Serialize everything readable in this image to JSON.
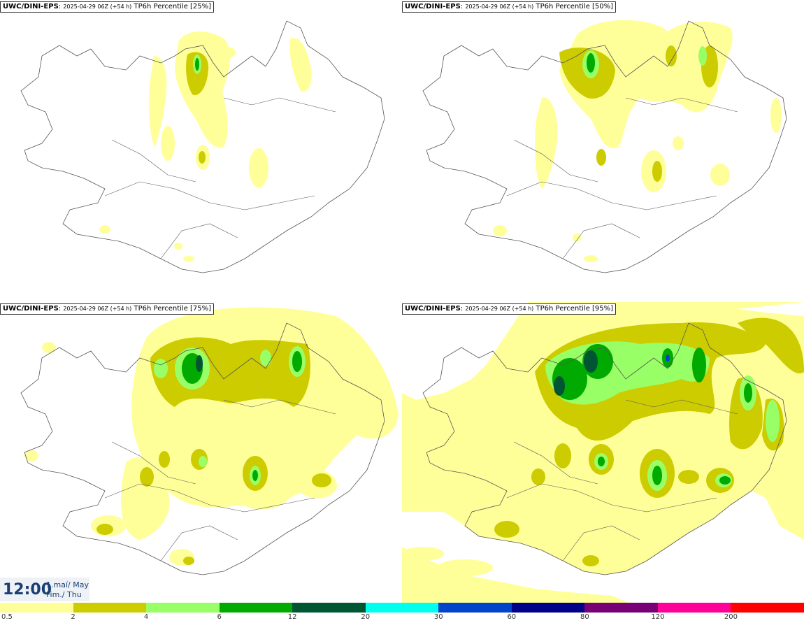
{
  "panels": [
    {
      "model": "UWC/DINI-EPS",
      "run": "2025-04-29 06Z (+54 h)",
      "field": "TP6h Percentile [25%]",
      "level": 0
    },
    {
      "model": "UWC/DINI-EPS",
      "run": "2025-04-29 06Z (+54 h)",
      "field": "TP6h Percentile [50%]",
      "level": 1
    },
    {
      "model": "UWC/DINI-EPS",
      "run": "2025-04-29 06Z (+54 h)",
      "field": "TP6h Percentile [75%]",
      "level": 2
    },
    {
      "model": "UWC/DINI-EPS",
      "run": "2025-04-29 06Z (+54 h)",
      "field": "TP6h Percentile [95%]",
      "level": 3
    }
  ],
  "time": {
    "hour": "12:00",
    "date_line1": "1.maí/ May",
    "date_line2": "Fim./ Thu"
  },
  "legend": {
    "colors": [
      "#ffff99",
      "#cccc00",
      "#99ff66",
      "#00aa00",
      "#005533",
      "#00ffee",
      "#0044cc",
      "#000088",
      "#770077",
      "#ff0099",
      "#ff0000"
    ],
    "labels": [
      "0.5",
      "2",
      "4",
      "6",
      "12",
      "20",
      "30",
      "60",
      "80",
      "120",
      "200"
    ]
  },
  "colors": {
    "coast": "#555555",
    "yellow": "#ffff99",
    "olive": "#cccc00",
    "lightgreen": "#99ff66",
    "green": "#00aa00",
    "darkgreen": "#005533"
  }
}
